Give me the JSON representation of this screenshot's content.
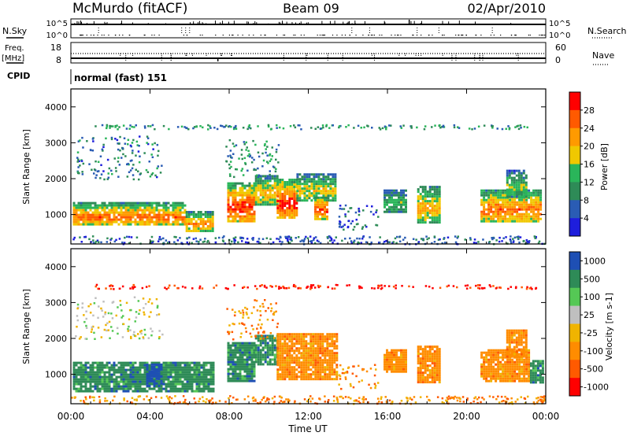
{
  "header": {
    "station": "McMurdo (fitACF)",
    "beam": "Beam 09",
    "date": "02/Apr/2010"
  },
  "aux_panels": {
    "nsky_label": "N.Sky",
    "nsky_tick_top": "10^5",
    "nsky_tick_bottom": "10^0",
    "nsearch_label": "N.Search",
    "nsearch_tick_top": "10^5",
    "nsearch_tick_bottom": "10^0",
    "freq_label_1": "Freq.",
    "freq_label_2": "[MHz]",
    "freq_tick_top": "18",
    "freq_tick_bottom": "8",
    "nave_label": "Nave",
    "nave_tick_top": "60",
    "nave_tick_bottom": "0",
    "cpid_label": "CPID",
    "cpid_value": "normal (fast) 151"
  },
  "chart_data": [
    {
      "type": "heatmap",
      "title": "",
      "xlabel": "",
      "ylabel": "Slant Range [km]",
      "colorbar_label": "Power [dB]",
      "xlim_hours": [
        0,
        24
      ],
      "ylim": [
        180,
        4500
      ],
      "yticks": [
        "1000",
        "2000",
        "3000",
        "4000"
      ],
      "colorbar_ticks": [
        "4",
        "8",
        "12",
        "16",
        "20",
        "24",
        "28"
      ],
      "colorbar_range": [
        0,
        30
      ],
      "colors": [
        "#1e1edc",
        "#2a5cb4",
        "#2e8b57",
        "#2ab55a",
        "#f0c800",
        "#ff9a00",
        "#ff5a00",
        "#ff0000"
      ],
      "echo_regions": [
        {
          "t0": 0.1,
          "t1": 5.8,
          "r0": 700,
          "r1": 1350,
          "v": 22
        },
        {
          "t0": 5.8,
          "t1": 7.2,
          "r0": 550,
          "r1": 1100,
          "v": 20
        },
        {
          "t0": 7.9,
          "t1": 9.3,
          "r0": 800,
          "r1": 1900,
          "v": 25
        },
        {
          "t0": 9.3,
          "t1": 10.4,
          "r0": 1300,
          "r1": 2100,
          "v": 18
        },
        {
          "t0": 10.4,
          "t1": 11.4,
          "r0": 900,
          "r1": 2000,
          "v": 26
        },
        {
          "t0": 11.4,
          "t1": 13.4,
          "r0": 1400,
          "r1": 2150,
          "v": 16
        },
        {
          "t0": 12.3,
          "t1": 13.0,
          "r0": 900,
          "r1": 1500,
          "v": 24
        },
        {
          "t0": 15.8,
          "t1": 16.9,
          "r0": 1100,
          "r1": 1700,
          "v": 12
        },
        {
          "t0": 17.5,
          "t1": 18.6,
          "r0": 800,
          "r1": 1800,
          "v": 18
        },
        {
          "t0": 20.7,
          "t1": 23.8,
          "r0": 800,
          "r1": 1700,
          "v": 22
        },
        {
          "t0": 22.0,
          "t1": 23.0,
          "r0": 1500,
          "r1": 2250,
          "v": 14
        }
      ],
      "scatter_regions": [
        {
          "t0": 0.2,
          "t1": 4.6,
          "r0": 2000,
          "r1": 3200,
          "v": 8,
          "n": 140
        },
        {
          "t0": 7.8,
          "t1": 10.5,
          "r0": 2000,
          "r1": 3100,
          "v": 10,
          "n": 90
        },
        {
          "t0": 1.0,
          "t1": 23.5,
          "r0": 3400,
          "r1": 3520,
          "v": 10,
          "n": 160
        },
        {
          "t0": 0.0,
          "t1": 24.0,
          "r0": 200,
          "r1": 420,
          "v": 6,
          "n": 300
        },
        {
          "t0": 13.5,
          "t1": 15.5,
          "r0": 600,
          "r1": 1300,
          "v": 6,
          "n": 50
        }
      ]
    },
    {
      "type": "heatmap",
      "title": "",
      "xlabel": "Time UT",
      "ylabel": "Slant Range [km]",
      "colorbar_label": "Velocity [m s-1]",
      "xlim_hours": [
        0,
        24
      ],
      "ylim": [
        180,
        4500
      ],
      "xticks": [
        "00:00",
        "04:00",
        "08:00",
        "12:00",
        "16:00",
        "20:00",
        "00:00"
      ],
      "yticks": [
        "1000",
        "2000",
        "3000",
        "4000"
      ],
      "colorbar_ticks": [
        "1000",
        "500",
        "100",
        "25",
        "-25",
        "-100",
        "-500",
        "-1000"
      ],
      "colors": [
        "#1e4fb4",
        "#2e8b57",
        "#55c855",
        "#bfbfbf",
        "#f0b400",
        "#ff8c00",
        "#ff5a00",
        "#ff0000"
      ],
      "echo_regions": [
        {
          "t0": 0.1,
          "t1": 7.2,
          "r0": 550,
          "r1": 1350,
          "v": 1
        },
        {
          "t0": 3.8,
          "t1": 4.6,
          "r0": 650,
          "r1": 1300,
          "v": 0
        },
        {
          "t0": 7.9,
          "t1": 9.3,
          "r0": 800,
          "r1": 1900,
          "v": 1
        },
        {
          "t0": 9.3,
          "t1": 10.4,
          "r0": 1300,
          "r1": 2100,
          "v": 1
        },
        {
          "t0": 10.4,
          "t1": 13.4,
          "r0": 900,
          "r1": 2150,
          "v": 5
        },
        {
          "t0": 15.8,
          "t1": 16.9,
          "r0": 1100,
          "r1": 1700,
          "v": 5
        },
        {
          "t0": 17.5,
          "t1": 18.6,
          "r0": 800,
          "r1": 1800,
          "v": 5
        },
        {
          "t0": 20.7,
          "t1": 23.2,
          "r0": 800,
          "r1": 1700,
          "v": 5
        },
        {
          "t0": 23.2,
          "t1": 23.8,
          "r0": 800,
          "r1": 1400,
          "v": 1
        },
        {
          "t0": 22.0,
          "t1": 23.0,
          "r0": 1500,
          "r1": 2250,
          "v": 5
        }
      ],
      "scatter_regions": [
        {
          "t0": 0.2,
          "t1": 4.6,
          "r0": 2000,
          "r1": 3200,
          "v": 3,
          "n": 120
        },
        {
          "t0": 7.8,
          "t1": 10.5,
          "r0": 2000,
          "r1": 3100,
          "v": 5,
          "n": 80
        },
        {
          "t0": 1.0,
          "t1": 23.5,
          "r0": 3400,
          "r1": 3520,
          "v": 7,
          "n": 150
        },
        {
          "t0": 0.0,
          "t1": 24.0,
          "r0": 200,
          "r1": 420,
          "v": 5,
          "n": 280
        },
        {
          "t0": 13.5,
          "t1": 15.5,
          "r0": 600,
          "r1": 1300,
          "v": 5,
          "n": 40
        }
      ]
    }
  ]
}
